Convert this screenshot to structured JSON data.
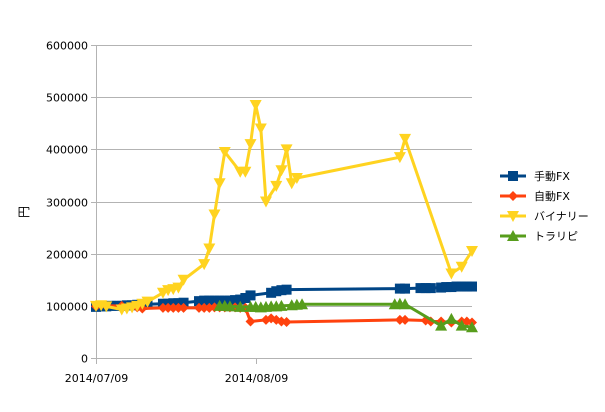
{
  "chart_data": {
    "type": "line",
    "title": "",
    "xlabel": "",
    "ylabel": "円",
    "ylim": [
      0,
      600000
    ],
    "yticks": [
      0,
      100000,
      200000,
      300000,
      400000,
      500000,
      600000
    ],
    "ytick_labels": [
      "0",
      "100000",
      "200000",
      "300000",
      "400000",
      "500000",
      "600000"
    ],
    "xlim": [
      "2014-07-09",
      "2014-09-20"
    ],
    "xtick_labels": [
      "2014/07/09",
      "2014/08/09"
    ],
    "xtick_dates": [
      "2014-07-09",
      "2014-08-09"
    ],
    "grid": "horizontal",
    "legend_position": "right",
    "series": [
      {
        "name": "手動FX",
        "color": "#004586",
        "marker": "square",
        "x": [
          "2014-07-09",
          "2014-07-10",
          "2014-07-11",
          "2014-07-12",
          "2014-07-13",
          "2014-07-14",
          "2014-07-15",
          "2014-07-16",
          "2014-07-17",
          "2014-07-18",
          "2014-07-19",
          "2014-07-22",
          "2014-07-23",
          "2014-07-24",
          "2014-07-25",
          "2014-07-26",
          "2014-07-29",
          "2014-07-30",
          "2014-07-31",
          "2014-08-01",
          "2014-08-02",
          "2014-08-03",
          "2014-08-04",
          "2014-08-05",
          "2014-08-06",
          "2014-08-07",
          "2014-08-08",
          "2014-08-12",
          "2014-08-13",
          "2014-08-14",
          "2014-08-15",
          "2014-09-06",
          "2014-09-07",
          "2014-09-10",
          "2014-09-11",
          "2014-09-12",
          "2014-09-14",
          "2014-09-15",
          "2014-09-16",
          "2014-09-17",
          "2014-09-18",
          "2014-09-19",
          "2014-09-20"
        ],
        "values": [
          98000,
          99000,
          99000,
          100000,
          100000,
          100000,
          101000,
          101000,
          102000,
          102000,
          103000,
          104000,
          104000,
          105000,
          105000,
          106000,
          109000,
          110000,
          110000,
          110000,
          110000,
          110000,
          110000,
          111000,
          112000,
          115000,
          120000,
          125000,
          128000,
          130000,
          131000,
          133000,
          133000,
          134000,
          134000,
          134000,
          135000,
          136000,
          136000,
          137000,
          137000,
          137000,
          137000
        ]
      },
      {
        "name": "自動FX",
        "color": "#ff420e",
        "marker": "diamond",
        "x": [
          "2014-07-09",
          "2014-07-11",
          "2014-07-14",
          "2014-07-16",
          "2014-07-17",
          "2014-07-18",
          "2014-07-22",
          "2014-07-23",
          "2014-07-24",
          "2014-07-25",
          "2014-07-26",
          "2014-07-29",
          "2014-07-30",
          "2014-07-31",
          "2014-08-01",
          "2014-08-02",
          "2014-08-03",
          "2014-08-04",
          "2014-08-05",
          "2014-08-06",
          "2014-08-07",
          "2014-08-08",
          "2014-08-11",
          "2014-08-12",
          "2014-08-13",
          "2014-08-14",
          "2014-08-15",
          "2014-09-06",
          "2014-09-07",
          "2014-09-11",
          "2014-09-12",
          "2014-09-14",
          "2014-09-16",
          "2014-09-18",
          "2014-09-19",
          "2014-09-20"
        ],
        "values": [
          99000,
          100000,
          100000,
          99000,
          97000,
          95000,
          96000,
          96000,
          96000,
          96000,
          96000,
          96000,
          96000,
          96000,
          97000,
          97000,
          97000,
          97000,
          97000,
          96000,
          96000,
          70000,
          73000,
          76000,
          73000,
          70000,
          69000,
          73000,
          73000,
          72000,
          70000,
          70000,
          68000,
          70000,
          70000,
          68000
        ]
      },
      {
        "name": "バイナリー",
        "color": "#ffd320",
        "marker": "triangle-down",
        "x": [
          "2014-07-09",
          "2014-07-10",
          "2014-07-11",
          "2014-07-14",
          "2014-07-15",
          "2014-07-16",
          "2014-07-17",
          "2014-07-18",
          "2014-07-19",
          "2014-07-22",
          "2014-07-23",
          "2014-07-24",
          "2014-07-25",
          "2014-07-26",
          "2014-07-30",
          "2014-07-31",
          "2014-08-01",
          "2014-08-02",
          "2014-08-03",
          "2014-08-06",
          "2014-08-07",
          "2014-08-08",
          "2014-08-09",
          "2014-08-10",
          "2014-08-11",
          "2014-08-13",
          "2014-08-14",
          "2014-08-15",
          "2014-08-16",
          "2014-08-17",
          "2014-09-06",
          "2014-09-07",
          "2014-09-16",
          "2014-09-18",
          "2014-09-20"
        ],
        "values": [
          100000,
          101000,
          99000,
          93000,
          95000,
          97000,
          100000,
          104000,
          108000,
          125000,
          130000,
          132000,
          135000,
          150000,
          180000,
          210000,
          275000,
          335000,
          395000,
          357000,
          357000,
          410000,
          485000,
          440000,
          300000,
          330000,
          360000,
          400000,
          335000,
          345000,
          385000,
          420000,
          162000,
          175000,
          205000
        ]
      },
      {
        "name": "トラリピ",
        "color": "#579d1c",
        "marker": "triangle-up",
        "x": [
          "2014-08-02",
          "2014-08-03",
          "2014-08-04",
          "2014-08-06",
          "2014-08-08",
          "2014-08-09",
          "2014-08-10",
          "2014-08-11",
          "2014-08-12",
          "2014-08-13",
          "2014-08-14",
          "2014-08-16",
          "2014-08-17",
          "2014-08-18",
          "2014-09-05",
          "2014-09-06",
          "2014-09-07",
          "2014-09-14",
          "2014-09-16",
          "2014-09-18",
          "2014-09-20"
        ],
        "values": [
          100000,
          100000,
          99000,
          98000,
          98000,
          98000,
          97000,
          98000,
          99000,
          99000,
          100000,
          101000,
          102000,
          103000,
          103000,
          104000,
          103000,
          62000,
          75000,
          62000,
          59000
        ]
      }
    ]
  }
}
